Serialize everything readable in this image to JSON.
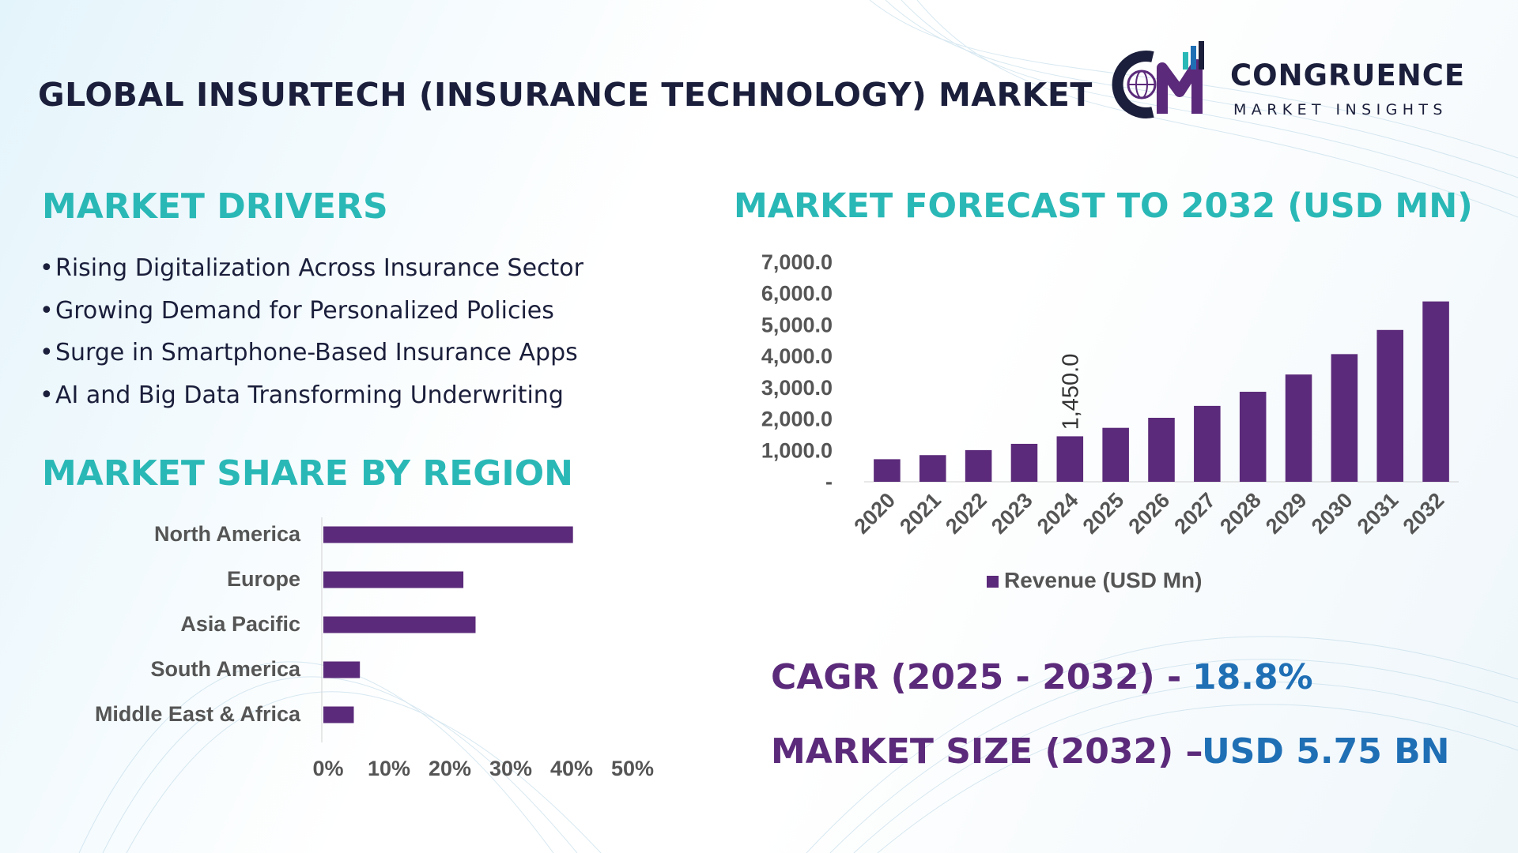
{
  "header": {
    "title": "GLOBAL INSURTECH (INSURANCE TECHNOLOGY) MARKET",
    "logo": {
      "mark_text": "CM",
      "name": "CONGRUENCE",
      "tagline": "MARKET INSIGHTS",
      "icon": "globe-icon"
    }
  },
  "drivers": {
    "title": "MARKET DRIVERS",
    "items": [
      "Rising Digitalization Across Insurance Sector",
      "Growing Demand for Personalized Policies",
      "Surge in Smartphone-Based Insurance Apps",
      "AI and Big Data Transforming Underwriting"
    ]
  },
  "region": {
    "title": "MARKET SHARE BY REGION"
  },
  "forecast": {
    "title": "MARKET FORECAST TO 2032 (USD MN)"
  },
  "kpis": {
    "cagr_label": "CAGR (2025 - 2032) -",
    "cagr_value": "18.8%",
    "size_label": "MARKET SIZE (2032) –",
    "size_value": "USD 5.75 BN"
  },
  "colors": {
    "bar": "#5b2a7a",
    "accent_teal": "#2ab8b6",
    "accent_blue": "#1f6fb5",
    "text_dark": "#1b1f3b",
    "axis_text": "#555555"
  },
  "chart_data": [
    {
      "type": "bar",
      "orientation": "horizontal",
      "categories": [
        "North America",
        "Europe",
        "Asia Pacific",
        "South America",
        "Middle East & Africa"
      ],
      "values": [
        41,
        23,
        25,
        6,
        5
      ],
      "unit": "%",
      "xlim": [
        0,
        50
      ],
      "xticks": [
        "0%",
        "10%",
        "20%",
        "30%",
        "40%",
        "50%"
      ],
      "grid": false
    },
    {
      "type": "bar",
      "categories": [
        "2020",
        "2021",
        "2022",
        "2023",
        "2024",
        "2025",
        "2026",
        "2027",
        "2028",
        "2029",
        "2030",
        "2031",
        "2032"
      ],
      "series": [
        {
          "name": "Revenue (USD Mn)",
          "values": [
            720,
            850,
            1010,
            1210,
            1450,
            1720,
            2040,
            2420,
            2870,
            3420,
            4070,
            4840,
            5750
          ]
        }
      ],
      "data_labels": [
        {
          "category": "2024",
          "text": "1,450.0"
        }
      ],
      "ylim": [
        0,
        7000
      ],
      "yticks": [
        "-",
        "1,000.0",
        "2,000.0",
        "3,000.0",
        "4,000.0",
        "5,000.0",
        "6,000.0",
        "7,000.0"
      ],
      "legend": "bottom",
      "grid": false
    }
  ]
}
